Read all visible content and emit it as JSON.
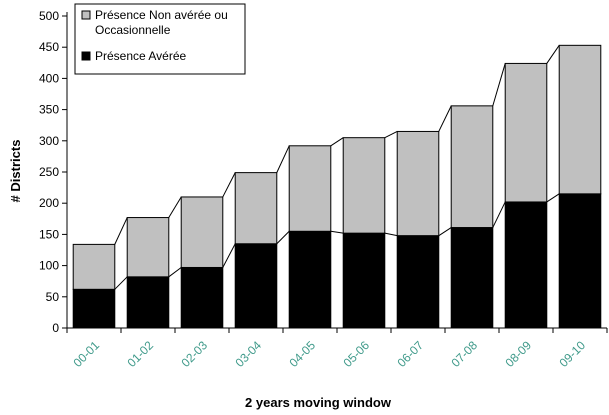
{
  "chart_data": {
    "type": "bar",
    "stacked": true,
    "categories": [
      "00-01",
      "01-02",
      "02-03",
      "03-04",
      "04-05",
      "05-06",
      "06-07",
      "07-08",
      "08-09",
      "09-10"
    ],
    "series": [
      {
        "name": "Présence Avérée",
        "color": "#000000",
        "values": [
          62,
          82,
          97,
          135,
          155,
          152,
          148,
          161,
          202,
          215
        ]
      },
      {
        "name": "Présence Non avérée ou Occasionnelle",
        "color": "#c0c0c0",
        "values": [
          72,
          95,
          113,
          114,
          137,
          153,
          167,
          195,
          222,
          238
        ]
      }
    ],
    "xlabel": "2 years moving window",
    "ylabel": "# Districts",
    "ylim": [
      0,
      500
    ],
    "yticks": [
      0,
      50,
      100,
      150,
      200,
      250,
      300,
      350,
      400,
      450,
      500
    ],
    "grid": false,
    "legend_position": "top-left",
    "legend": [
      {
        "lines": [
          "Présence Non avérée ou",
          "Occasionnelle"
        ],
        "series": 1
      },
      {
        "lines": [
          "Présence Avérée"
        ],
        "series": 0
      }
    ]
  }
}
